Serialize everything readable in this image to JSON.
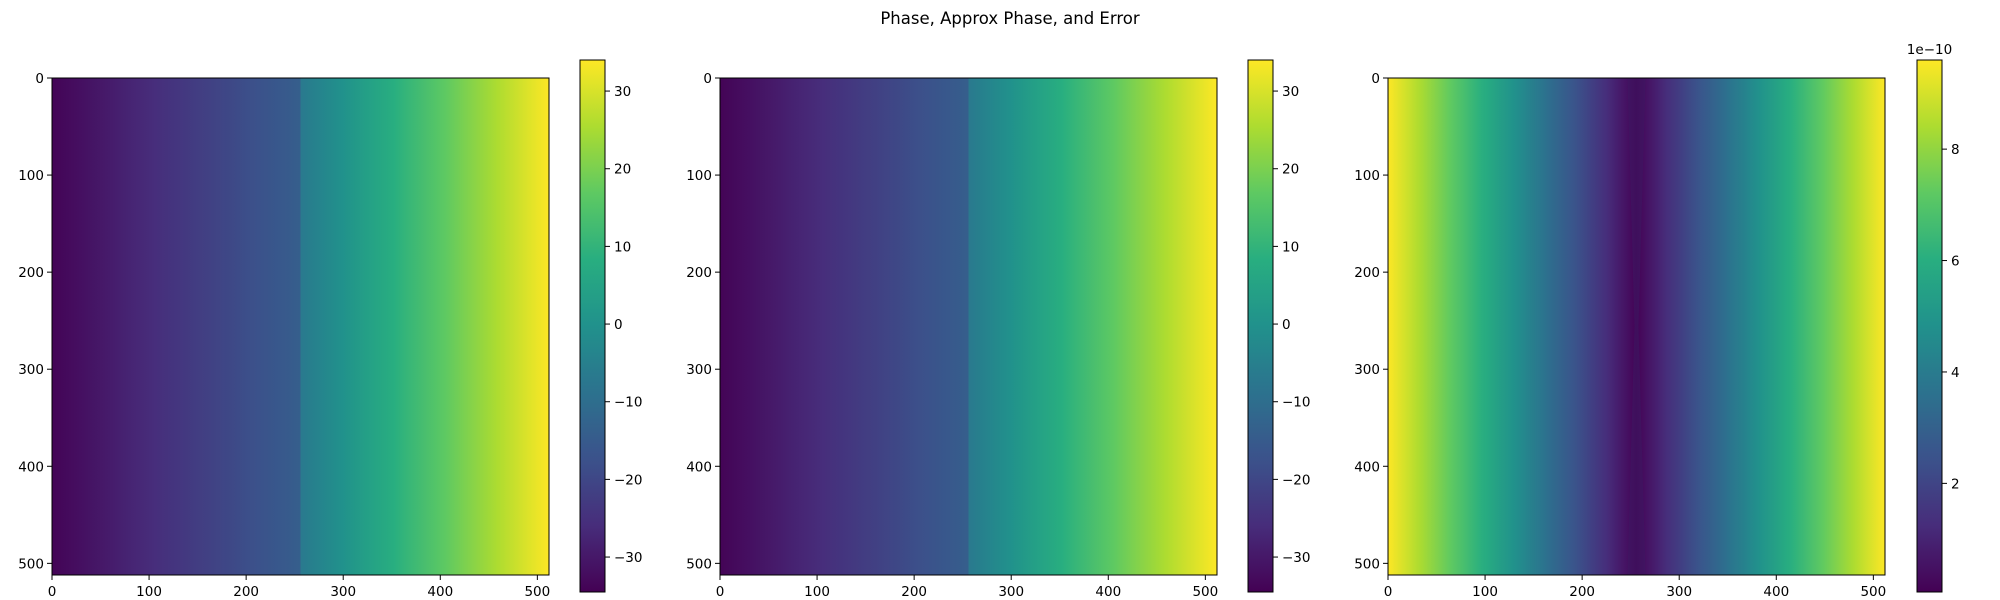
{
  "figure": {
    "title": "Phase, Approx Phase, and Error"
  },
  "chart_data": [
    {
      "type": "heatmap",
      "title": "",
      "xlabel": "",
      "ylabel": "",
      "colormap": "viridis",
      "image_size": [
        512,
        512
      ],
      "origin": "upper",
      "xlim": [
        0,
        512
      ],
      "ylim": [
        512,
        0
      ],
      "x_ticks": [
        0,
        100,
        200,
        300,
        400,
        500
      ],
      "y_ticks": [
        0,
        100,
        200,
        300,
        400,
        500
      ],
      "description": "phase varies linearly along x, with a slight step at x=256",
      "column_profile": {
        "x": [
          0,
          256,
          256,
          512
        ],
        "value": [
          -34,
          -14,
          -7,
          34
        ]
      },
      "colorbar": {
        "range": [
          -34.5,
          34.0
        ],
        "ticks": [
          -30,
          -20,
          -10,
          0,
          10,
          20,
          30
        ],
        "tick_labels": [
          "−30",
          "−20",
          "−10",
          "0",
          "10",
          "20",
          "30"
        ],
        "offset_label": ""
      }
    },
    {
      "type": "heatmap",
      "title": "",
      "xlabel": "",
      "ylabel": "",
      "colormap": "viridis",
      "image_size": [
        512,
        512
      ],
      "origin": "upper",
      "xlim": [
        0,
        512
      ],
      "ylim": [
        512,
        0
      ],
      "x_ticks": [
        0,
        100,
        200,
        300,
        400,
        500
      ],
      "y_ticks": [
        0,
        100,
        200,
        300,
        400,
        500
      ],
      "column_profile": {
        "x": [
          0,
          256,
          256,
          512
        ],
        "value": [
          -34,
          -14,
          -7,
          34
        ]
      },
      "colorbar": {
        "range": [
          -34.5,
          34.0
        ],
        "ticks": [
          -30,
          -20,
          -10,
          0,
          10,
          20,
          30
        ],
        "tick_labels": [
          "−30",
          "−20",
          "−10",
          "0",
          "10",
          "20",
          "30"
        ],
        "offset_label": ""
      }
    },
    {
      "type": "heatmap",
      "title": "",
      "xlabel": "",
      "ylabel": "",
      "colormap": "viridis",
      "image_size": [
        512,
        512
      ],
      "origin": "upper",
      "xlim": [
        0,
        512
      ],
      "ylim": [
        512,
        0
      ],
      "x_ticks": [
        0,
        100,
        200,
        300,
        400,
        500
      ],
      "y_ticks": [
        0,
        100,
        200,
        300,
        400,
        500
      ],
      "column_profile": {
        "x": [
          0,
          128,
          256,
          384,
          512
        ],
        "value": [
          9.6e-10,
          4.9e-10,
          1e-11,
          4.9e-10,
          9.6e-10
        ]
      },
      "colorbar": {
        "range": [
          5e-12,
          9.6e-10
        ],
        "ticks": [
          2e-10,
          4e-10,
          6e-10,
          8e-10
        ],
        "tick_labels": [
          "2",
          "4",
          "6",
          "8"
        ],
        "offset_label": "1e−10"
      }
    }
  ]
}
